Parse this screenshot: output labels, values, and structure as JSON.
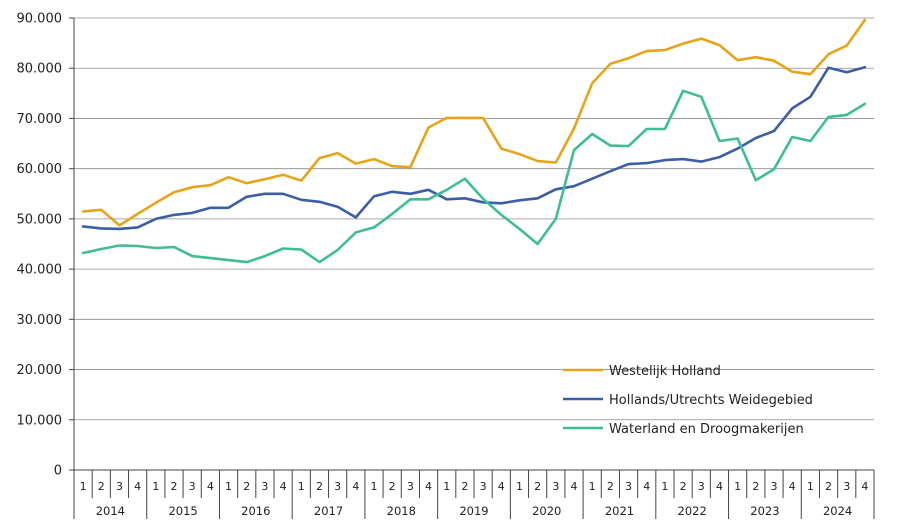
{
  "chart_data": {
    "type": "line",
    "years": [
      "2014",
      "2015",
      "2016",
      "2017",
      "2018",
      "2019",
      "2020",
      "2021",
      "2022",
      "2023",
      "2024"
    ],
    "quarters": [
      "1",
      "2",
      "3",
      "4"
    ],
    "ylim": [
      0,
      90000
    ],
    "y_ticks": [
      0,
      10000,
      20000,
      30000,
      40000,
      50000,
      60000,
      70000,
      80000,
      90000
    ],
    "y_tick_labels": [
      "0",
      "10.000",
      "20.000",
      "30.000",
      "40.000",
      "50.000",
      "60.000",
      "70.000",
      "80.000",
      "90.000"
    ],
    "grid": true,
    "legend_position": "inside-lower-right",
    "series": [
      {
        "name": "Westelijk Holland",
        "color": "#e8a419",
        "values": [
          51500,
          51800,
          48700,
          51000,
          53200,
          55300,
          56300,
          56700,
          58300,
          57100,
          57900,
          58800,
          57600,
          62100,
          63100,
          61000,
          61900,
          60500,
          60300,
          68200,
          70100,
          70100,
          70100,
          64000,
          62900,
          61500,
          61200,
          68000,
          77000,
          80900,
          82000,
          83400,
          83600,
          84900,
          85900,
          84600,
          81600,
          82200,
          81500,
          79300,
          78800,
          82800,
          84500,
          89600
        ]
      },
      {
        "name": "Hollands/Utrechts Weidegebied",
        "color": "#3b5ea6",
        "values": [
          48500,
          48100,
          48000,
          48300,
          50000,
          50800,
          51200,
          52200,
          52200,
          54400,
          55000,
          55000,
          53800,
          53400,
          52400,
          50300,
          54500,
          55400,
          55000,
          55800,
          53900,
          54100,
          53300,
          53100,
          53700,
          54100,
          55900,
          56500,
          58000,
          59500,
          60900,
          61100,
          61700,
          61900,
          61400,
          62300,
          64000,
          66100,
          67500,
          72000,
          74300,
          80100,
          79200,
          80200
        ]
      },
      {
        "name": "Waterland en Droogmakerijen",
        "color": "#3fbf8f",
        "values": [
          43200,
          44000,
          44700,
          44600,
          44200,
          44400,
          42600,
          42200,
          41800,
          41400,
          42600,
          44100,
          43900,
          41400,
          43800,
          47300,
          48300,
          51000,
          53900,
          53900,
          55800,
          58000,
          54000,
          50800,
          48000,
          45000,
          50000,
          63700,
          66900,
          64600,
          64500,
          67900,
          67900,
          75500,
          74300,
          65500,
          66000,
          57700,
          59900,
          66300,
          65500,
          70300,
          70700,
          72900
        ]
      }
    ]
  }
}
